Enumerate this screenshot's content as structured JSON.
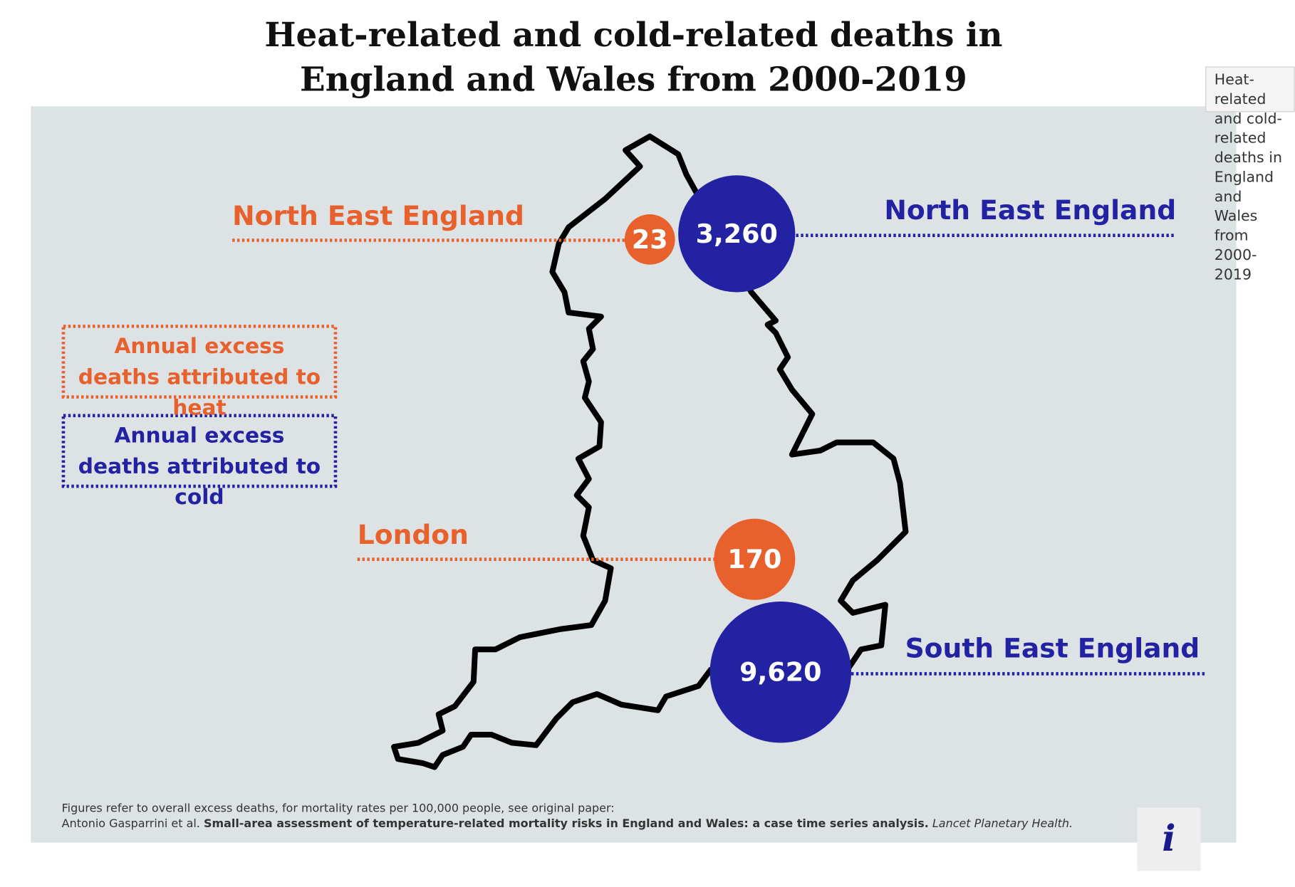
{
  "title": "Heat-related and cold-related deaths in England and Wales from 2000-2019",
  "tooltip": "Heat-related and cold-related deaths in England and Wales from 2000-2019",
  "legend": {
    "heat": "Annual excess deaths attributed to heat",
    "cold": "Annual excess deaths attributed to cold"
  },
  "heat_markers": [
    {
      "region": "North East England",
      "label": "23"
    },
    {
      "region": "London",
      "label": "170"
    }
  ],
  "cold_markers": [
    {
      "region": "North East England",
      "label": "3,260"
    },
    {
      "region": "South East England",
      "label": "9,620"
    }
  ],
  "footer": {
    "note": "Figures refer to overall excess deaths, for mortality rates per 100,000 people, see original paper:",
    "authors": "Antonio Gasparrini et al.",
    "paper": "Small-area assessment of temperature-related mortality risks in England and Wales: a case time series analysis.",
    "journal": "Lancet Planetary Health."
  },
  "info_button": "i"
}
